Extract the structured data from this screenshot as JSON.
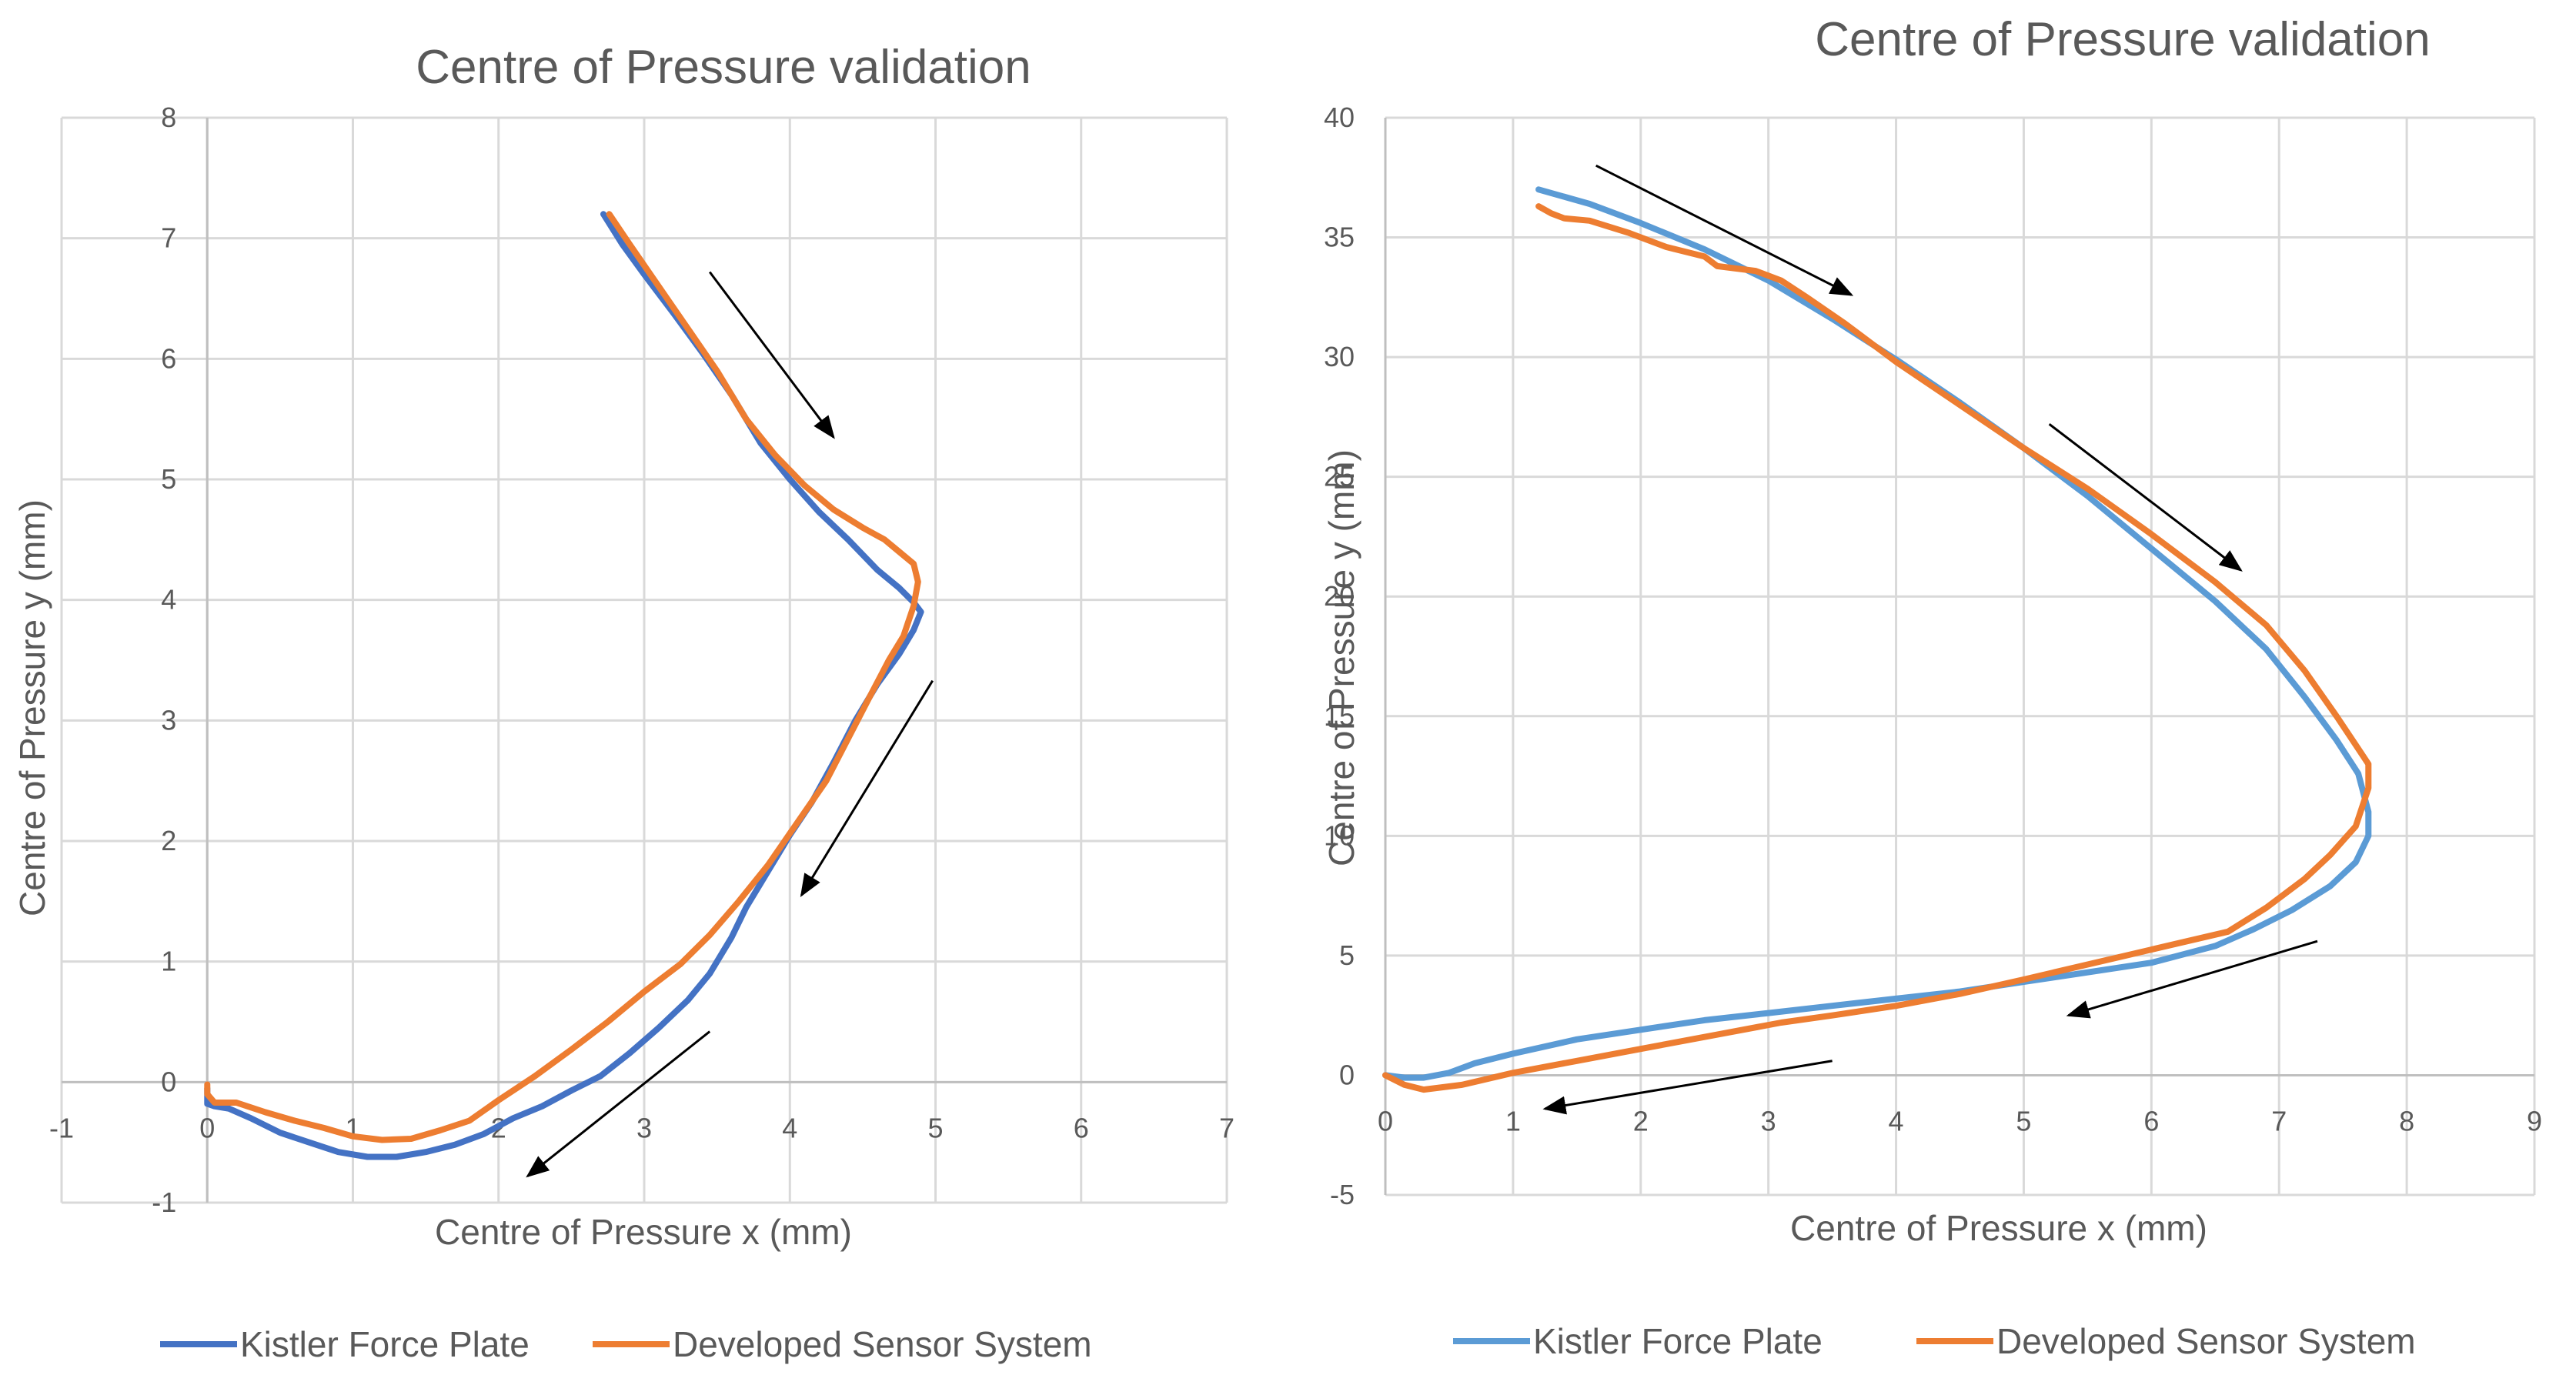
{
  "colors": {
    "kistler_left": "#4472C4",
    "kistler_right": "#5B9BD5",
    "developed": "#ED7D31",
    "grid": "#D9D9D9",
    "text": "#595959",
    "arrow": "#000000"
  },
  "chart_data": [
    {
      "type": "line",
      "title": "Centre of Pressure validation",
      "xlabel": "Centre of Pressure x (mm)",
      "ylabel": "Centre of Pressure y (mm)",
      "xlim": [
        -1,
        7
      ],
      "ylim": [
        -1,
        8
      ],
      "xticks": [
        -1,
        0,
        1,
        2,
        3,
        4,
        5,
        6,
        7
      ],
      "yticks": [
        -1,
        0,
        1,
        2,
        3,
        4,
        5,
        6,
        7,
        8
      ],
      "grid": true,
      "legend_position": "bottom",
      "series": [
        {
          "name": "Kistler Force Plate",
          "color_key": "kistler_left",
          "x": [
            2.72,
            2.85,
            3.0,
            3.2,
            3.4,
            3.6,
            3.8,
            4.0,
            4.2,
            4.4,
            4.6,
            4.75,
            4.85,
            4.9,
            4.85,
            4.75,
            4.6,
            4.45,
            4.3,
            4.15,
            4.0,
            3.85,
            3.7,
            3.6,
            3.45,
            3.3,
            3.1,
            2.9,
            2.7,
            2.5,
            2.3,
            2.1,
            1.9,
            1.7,
            1.5,
            1.3,
            1.1,
            0.9,
            0.7,
            0.5,
            0.3,
            0.15,
            0.05,
            0.0,
            0.0
          ],
          "y": [
            7.2,
            6.95,
            6.7,
            6.38,
            6.05,
            5.7,
            5.3,
            5.0,
            4.73,
            4.5,
            4.25,
            4.1,
            3.98,
            3.9,
            3.75,
            3.55,
            3.3,
            3.0,
            2.65,
            2.32,
            2.05,
            1.75,
            1.45,
            1.2,
            0.9,
            0.68,
            0.45,
            0.24,
            0.05,
            -0.07,
            -0.2,
            -0.3,
            -0.43,
            -0.52,
            -0.58,
            -0.62,
            -0.62,
            -0.58,
            -0.5,
            -0.42,
            -0.3,
            -0.22,
            -0.2,
            -0.18,
            -0.05
          ]
        },
        {
          "name": "Developed Sensor System",
          "color_key": "developed",
          "x": [
            2.76,
            2.9,
            3.1,
            3.3,
            3.5,
            3.7,
            3.9,
            4.1,
            4.3,
            4.5,
            4.65,
            4.75,
            4.85,
            4.88,
            4.85,
            4.78,
            4.68,
            4.55,
            4.4,
            4.25,
            4.05,
            3.85,
            3.65,
            3.45,
            3.25,
            3.0,
            2.75,
            2.5,
            2.25,
            2.0,
            1.8,
            1.6,
            1.4,
            1.2,
            1.0,
            0.8,
            0.6,
            0.4,
            0.2,
            0.05,
            0.0,
            0.0
          ],
          "y": [
            7.2,
            6.95,
            6.6,
            6.25,
            5.9,
            5.5,
            5.2,
            4.95,
            4.75,
            4.6,
            4.5,
            4.4,
            4.3,
            4.15,
            3.95,
            3.7,
            3.5,
            3.2,
            2.85,
            2.5,
            2.15,
            1.8,
            1.5,
            1.22,
            0.98,
            0.75,
            0.5,
            0.27,
            0.05,
            -0.15,
            -0.32,
            -0.4,
            -0.47,
            -0.48,
            -0.45,
            -0.38,
            -0.32,
            -0.25,
            -0.17,
            -0.17,
            -0.1,
            -0.02
          ]
        }
      ],
      "annotations": [
        {
          "type": "arrow",
          "from": [
            3.45,
            6.72
          ],
          "to": [
            4.3,
            5.35
          ]
        },
        {
          "type": "arrow",
          "from": [
            4.98,
            3.33
          ],
          "to": [
            4.08,
            1.55
          ]
        },
        {
          "type": "arrow",
          "from": [
            3.45,
            0.42
          ],
          "to": [
            2.2,
            -0.78
          ]
        }
      ]
    },
    {
      "type": "line",
      "title": "Centre of Pressure validation",
      "xlabel": "Centre of Pressure x (mm)",
      "ylabel": "Centre of Pressure y (mm)",
      "xlim": [
        0,
        9
      ],
      "ylim": [
        -5,
        40
      ],
      "xticks": [
        0,
        1,
        2,
        3,
        4,
        5,
        6,
        7,
        8,
        9
      ],
      "yticks": [
        -5,
        0,
        5,
        10,
        15,
        20,
        25,
        30,
        35,
        40
      ],
      "grid": true,
      "legend_position": "bottom",
      "series": [
        {
          "name": "Kistler Force Plate",
          "color_key": "kistler_right",
          "x": [
            1.2,
            1.6,
            2.0,
            2.5,
            3.0,
            3.5,
            4.0,
            4.5,
            5.0,
            5.5,
            6.0,
            6.5,
            6.9,
            7.2,
            7.45,
            7.62,
            7.7,
            7.7,
            7.6,
            7.4,
            7.1,
            6.8,
            6.5,
            6.0,
            5.5,
            5.0,
            4.5,
            4.0,
            3.5,
            3.0,
            2.5,
            2.0,
            1.5,
            1.0,
            0.7,
            0.5,
            0.3,
            0.15,
            0.0
          ],
          "y": [
            37.0,
            36.4,
            35.6,
            34.5,
            33.2,
            31.6,
            29.9,
            28.1,
            26.2,
            24.2,
            22.0,
            19.8,
            17.8,
            15.8,
            14.0,
            12.6,
            11.0,
            10.0,
            8.9,
            7.9,
            6.9,
            6.1,
            5.4,
            4.7,
            4.3,
            3.9,
            3.5,
            3.2,
            2.9,
            2.6,
            2.3,
            1.9,
            1.5,
            0.9,
            0.5,
            0.1,
            -0.1,
            -0.1,
            0.0
          ]
        },
        {
          "name": "Developed Sensor System",
          "color_key": "developed",
          "x": [
            1.2,
            1.3,
            1.4,
            1.6,
            1.9,
            2.2,
            2.5,
            2.6,
            2.9,
            3.1,
            3.3,
            3.6,
            4.0,
            4.5,
            5.0,
            5.5,
            6.0,
            6.5,
            6.9,
            7.2,
            7.45,
            7.6,
            7.7,
            7.7,
            7.6,
            7.4,
            7.2,
            6.9,
            6.6,
            6.2,
            5.8,
            5.4,
            5.0,
            4.5,
            4.0,
            3.5,
            3.1,
            2.6,
            2.0,
            1.5,
            1.0,
            0.6,
            0.3,
            0.15,
            0.0
          ],
          "y": [
            36.3,
            36.0,
            35.8,
            35.7,
            35.2,
            34.6,
            34.2,
            33.8,
            33.6,
            33.2,
            32.5,
            31.4,
            29.8,
            28.0,
            26.2,
            24.5,
            22.6,
            20.6,
            18.8,
            16.9,
            15.0,
            13.8,
            13.0,
            12.0,
            10.4,
            9.2,
            8.2,
            7.0,
            6.0,
            5.5,
            5.0,
            4.5,
            4.0,
            3.4,
            2.9,
            2.5,
            2.2,
            1.7,
            1.1,
            0.6,
            0.1,
            -0.4,
            -0.6,
            -0.4,
            0.0
          ]
        }
      ],
      "annotations": [
        {
          "type": "arrow",
          "from": [
            1.65,
            38.0
          ],
          "to": [
            3.65,
            32.6
          ]
        },
        {
          "type": "arrow",
          "from": [
            5.2,
            27.2
          ],
          "to": [
            6.7,
            21.1
          ]
        },
        {
          "type": "arrow",
          "from": [
            7.3,
            5.6
          ],
          "to": [
            5.35,
            2.5
          ]
        },
        {
          "type": "arrow",
          "from": [
            3.5,
            0.6
          ],
          "to": [
            1.25,
            -1.4
          ]
        }
      ]
    }
  ]
}
